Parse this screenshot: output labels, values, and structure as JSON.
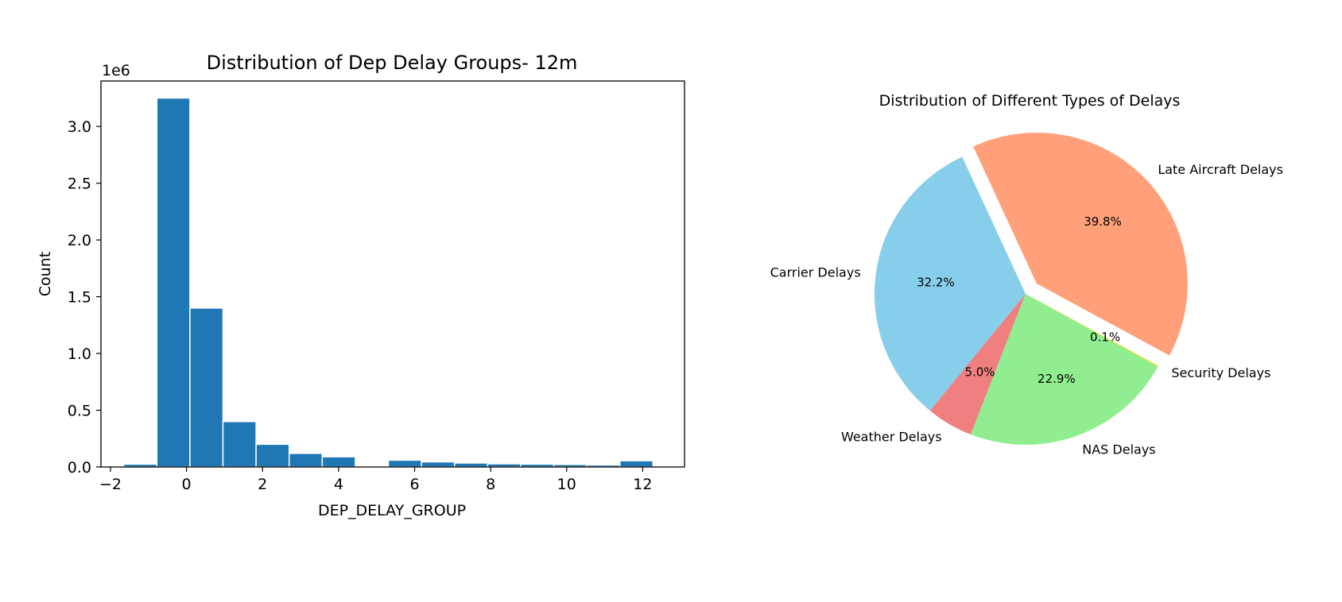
{
  "charts": {
    "histogram": {
      "title": "Distribution of Dep Delay Groups- 12m",
      "xlabel": "DEP_DELAY_GROUP",
      "ylabel": "Count",
      "y_offset_text": "1e6",
      "bar_color": "#1f77b4"
    },
    "pie": {
      "title": "Distribution of Different Types of Delays"
    }
  },
  "chart_data": [
    {
      "type": "bar",
      "title": "Distribution of Dep Delay Groups- 12m",
      "xlabel": "DEP_DELAY_GROUP",
      "ylabel": "Count",
      "y_scale_multiplier": "1e6",
      "xlim": [
        -2.25,
        13.1
      ],
      "ylim": [
        0,
        3.4
      ],
      "x_ticks": [
        -2,
        0,
        2,
        4,
        6,
        8,
        10,
        12
      ],
      "x_tick_labels": [
        "−2",
        "0",
        "2",
        "4",
        "6",
        "8",
        "10",
        "12"
      ],
      "y_ticks": [
        0.0,
        0.5,
        1.0,
        1.5,
        2.0,
        2.5,
        3.0
      ],
      "y_tick_labels": [
        "0.0",
        "0.5",
        "1.0",
        "1.5",
        "2.0",
        "2.5",
        "3.0"
      ],
      "grid": false,
      "bars": [
        {
          "x_start": -1.65,
          "x_end": -0.78,
          "value": 0.025
        },
        {
          "x_start": -0.78,
          "x_end": 0.09,
          "value": 3.25
        },
        {
          "x_start": 0.09,
          "x_end": 0.96,
          "value": 1.4
        },
        {
          "x_start": 0.96,
          "x_end": 1.83,
          "value": 0.4
        },
        {
          "x_start": 1.83,
          "x_end": 2.7,
          "value": 0.2
        },
        {
          "x_start": 2.7,
          "x_end": 3.57,
          "value": 0.12
        },
        {
          "x_start": 3.57,
          "x_end": 4.44,
          "value": 0.09
        },
        {
          "x_start": 5.31,
          "x_end": 6.18,
          "value": 0.06
        },
        {
          "x_start": 6.18,
          "x_end": 7.05,
          "value": 0.045
        },
        {
          "x_start": 7.05,
          "x_end": 7.92,
          "value": 0.035
        },
        {
          "x_start": 7.92,
          "x_end": 8.79,
          "value": 0.028
        },
        {
          "x_start": 8.79,
          "x_end": 9.66,
          "value": 0.025
        },
        {
          "x_start": 9.66,
          "x_end": 10.53,
          "value": 0.022
        },
        {
          "x_start": 10.53,
          "x_end": 11.4,
          "value": 0.018
        },
        {
          "x_start": 11.4,
          "x_end": 12.27,
          "value": 0.055
        }
      ]
    },
    {
      "type": "pie",
      "title": "Distribution of Different Types of Delays",
      "start_angle_deg": 114.8,
      "direction": "counterclockwise",
      "slices": [
        {
          "label": "Carrier Delays",
          "value": 32.2,
          "pct_label": "32.2%",
          "color": "#87ceeb",
          "explode": 0
        },
        {
          "label": "Weather Delays",
          "value": 5.0,
          "pct_label": "5.0%",
          "color": "#f08080",
          "explode": 0
        },
        {
          "label": "NAS Delays",
          "value": 22.9,
          "pct_label": "22.9%",
          "color": "#90ee90",
          "explode": 0
        },
        {
          "label": "Security Delays",
          "value": 0.1,
          "pct_label": "0.1%",
          "color": "#ffd700",
          "explode": 0
        },
        {
          "label": "Late Aircraft Delays",
          "value": 39.8,
          "pct_label": "39.8%",
          "color": "#ffa07a",
          "explode": 0.1
        }
      ]
    }
  ]
}
